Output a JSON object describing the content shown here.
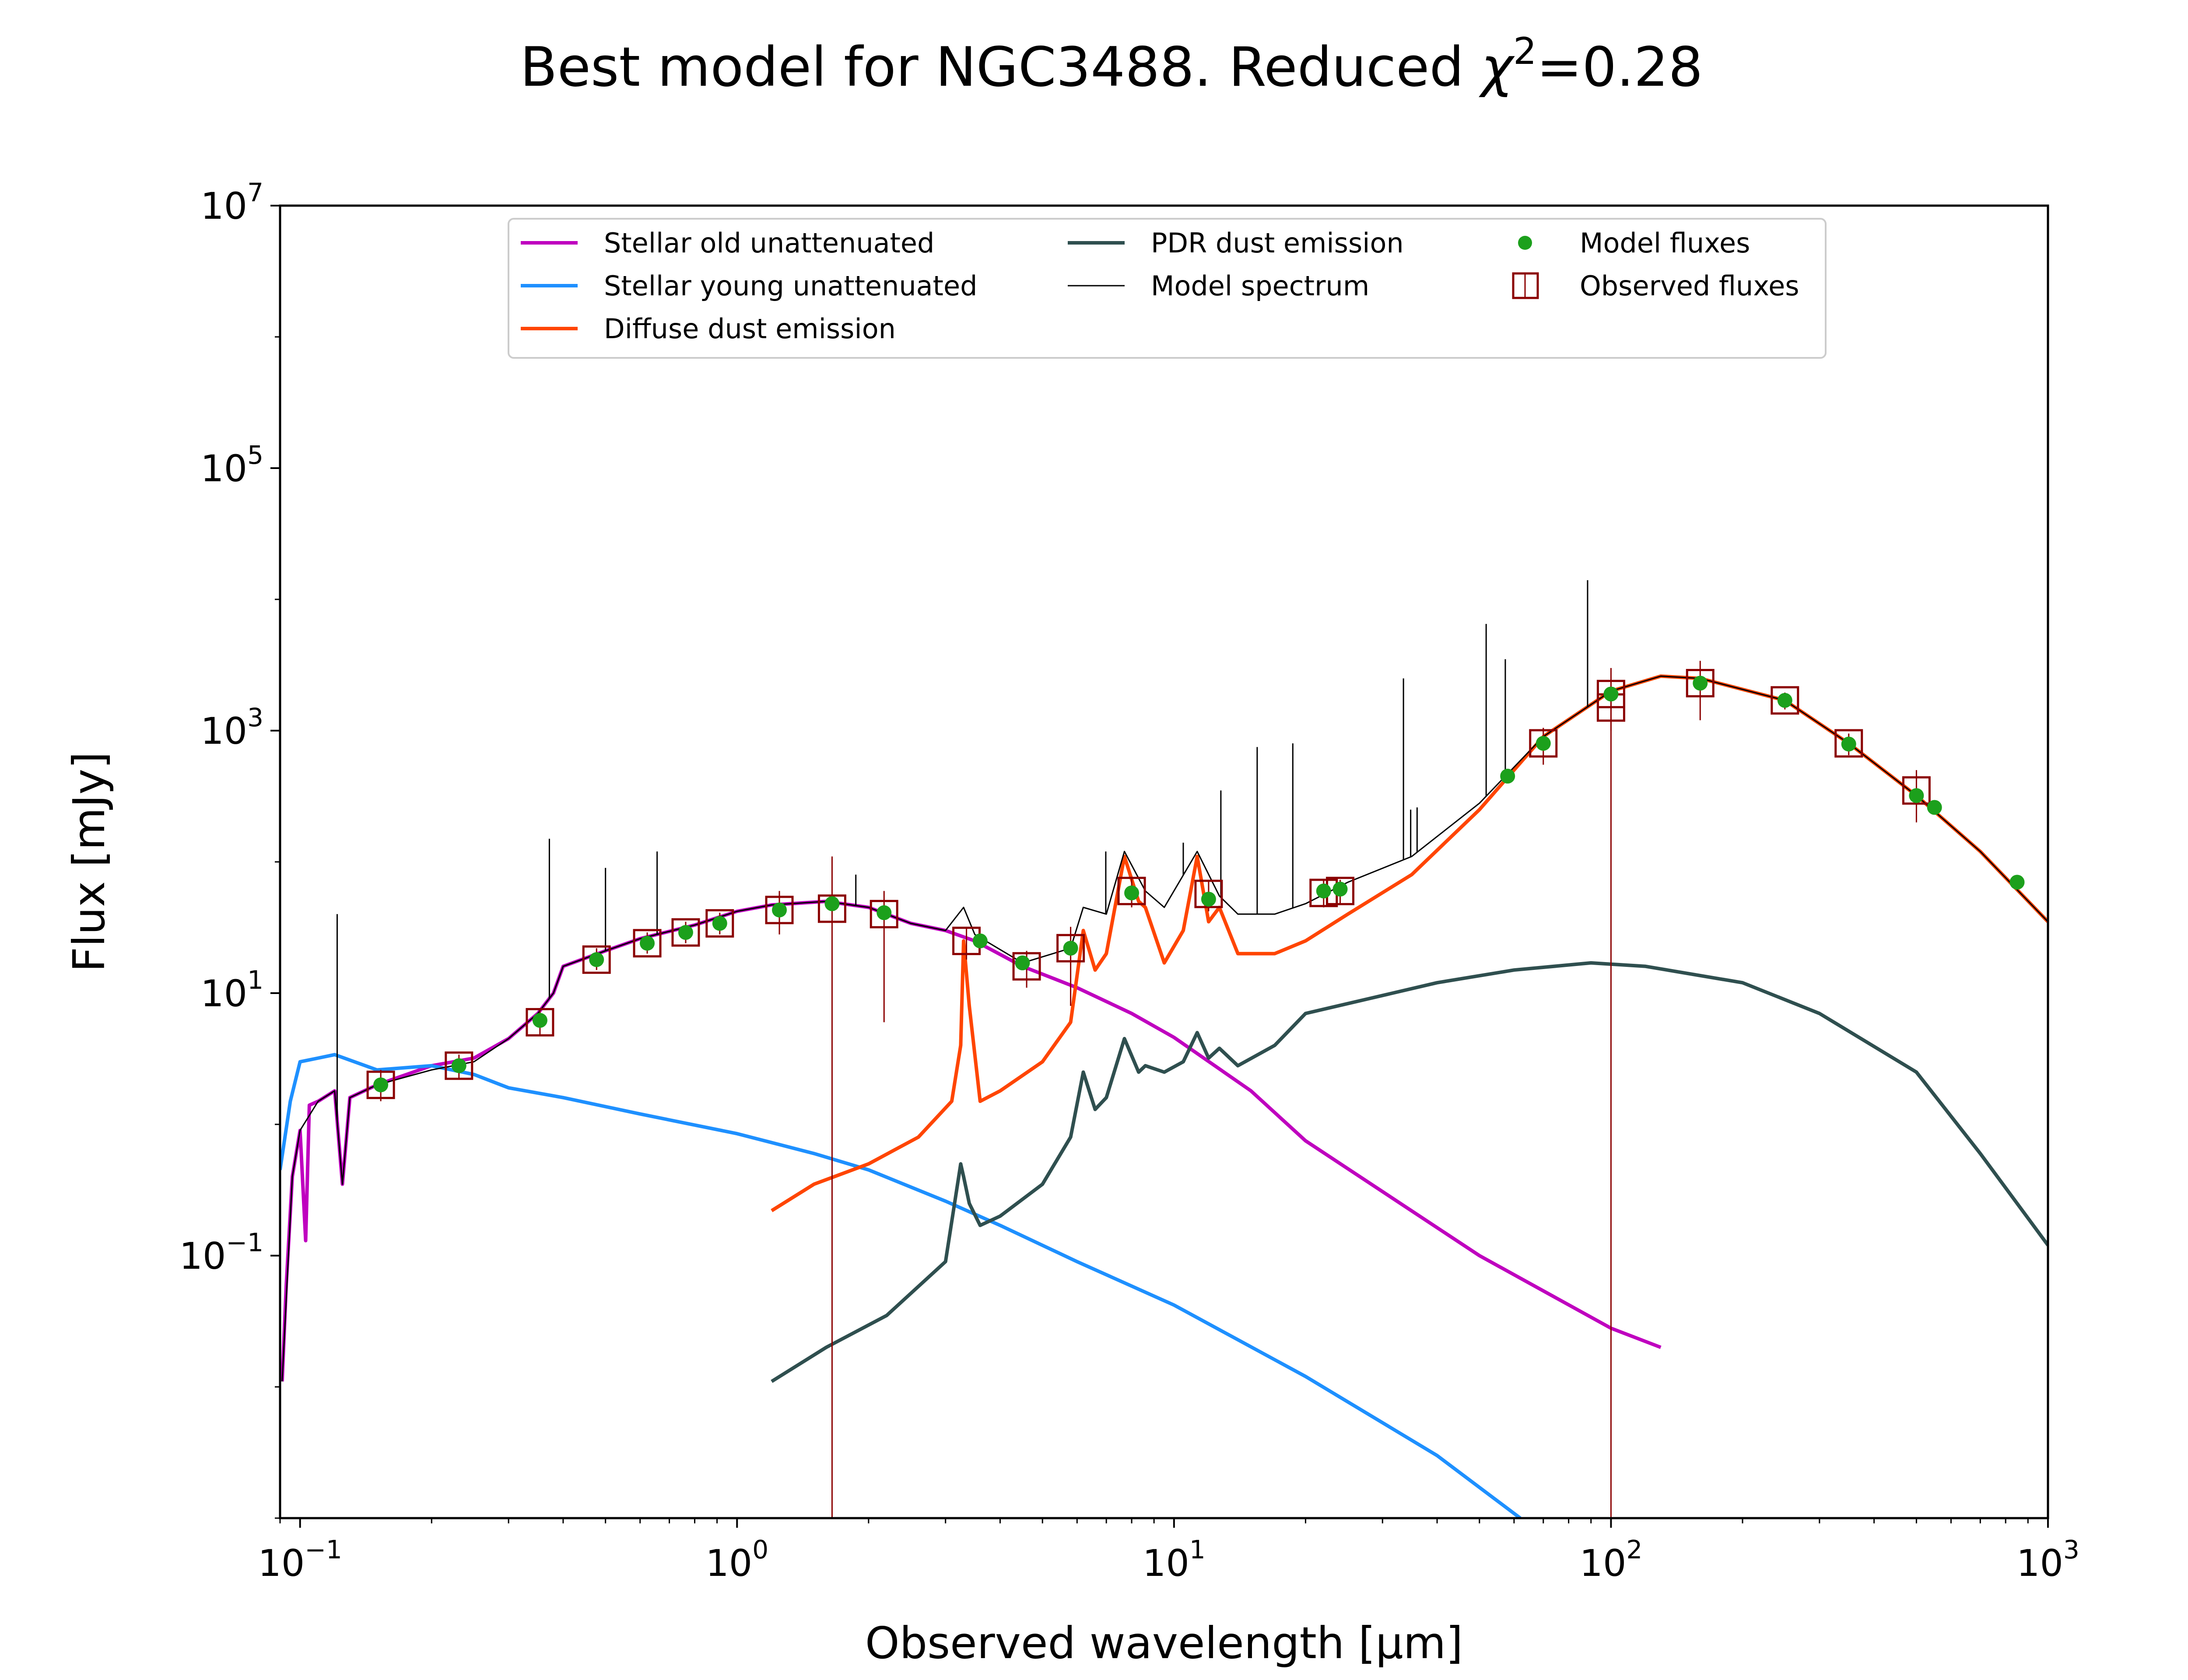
{
  "chart_data": {
    "type": "line",
    "title": "Best model for NGC3488. Reduced χ²=0.28",
    "title_parts": {
      "prefix": "Best model for NGC3488. Reduced ",
      "chi": "χ",
      "sup": "2",
      "suffix": "=0.28"
    },
    "xlabel": "Observed wavelength [μm]",
    "ylabel": "Flux [mJy]",
    "x_scale": "log",
    "y_scale": "log",
    "xlim": [
      0.09,
      1000
    ],
    "ylim": [
      0.001,
      10000000
    ],
    "x_ticks": [
      {
        "value": 0.1,
        "base": "10",
        "exp": "−1"
      },
      {
        "value": 1,
        "base": "10",
        "exp": "0"
      },
      {
        "value": 10,
        "base": "10",
        "exp": "1"
      },
      {
        "value": 100,
        "base": "10",
        "exp": "2"
      },
      {
        "value": 1000,
        "base": "10",
        "exp": "3"
      }
    ],
    "y_ticks": [
      {
        "value": 0.1,
        "base": "10",
        "exp": "−1"
      },
      {
        "value": 10,
        "base": "10",
        "exp": "1"
      },
      {
        "value": 1000,
        "base": "10",
        "exp": "3"
      },
      {
        "value": 100000,
        "base": "10",
        "exp": "5"
      },
      {
        "value": 10000000,
        "base": "10",
        "exp": "7"
      }
    ],
    "grid": false,
    "legend_position": "top-center",
    "legend": [
      {
        "label": "Stellar old unattenuated",
        "kind": "line",
        "color": "#bf00bf"
      },
      {
        "label": "Stellar young unattenuated",
        "kind": "line",
        "color": "#1e90ff"
      },
      {
        "label": "Diffuse dust emission",
        "kind": "line",
        "color": "#ff4500"
      },
      {
        "label": "PDR dust emission",
        "kind": "line",
        "color": "#2f4f4f"
      },
      {
        "label": "Model spectrum",
        "kind": "thin-line",
        "color": "#000000"
      },
      {
        "label": "Model fluxes",
        "kind": "dot",
        "color": "#1ca01c"
      },
      {
        "label": "Observed fluxes",
        "kind": "square",
        "color": "#8b0000"
      }
    ],
    "series": [
      {
        "name": "Stellar old unattenuated",
        "color": "#bf00bf",
        "points": [
          [
            0.091,
            0.011
          ],
          [
            0.093,
            0.06
          ],
          [
            0.096,
            0.4
          ],
          [
            0.1,
            0.9
          ],
          [
            0.103,
            0.13
          ],
          [
            0.105,
            1.4
          ],
          [
            0.11,
            1.5
          ],
          [
            0.12,
            1.8
          ],
          [
            0.125,
            0.35
          ],
          [
            0.13,
            1.6
          ],
          [
            0.15,
            2.0
          ],
          [
            0.2,
            2.8
          ],
          [
            0.25,
            3.2
          ],
          [
            0.3,
            4.5
          ],
          [
            0.35,
            7.0
          ],
          [
            0.38,
            10
          ],
          [
            0.4,
            16
          ],
          [
            0.5,
            21
          ],
          [
            0.6,
            26
          ],
          [
            0.8,
            33
          ],
          [
            1.0,
            42
          ],
          [
            1.2,
            47
          ],
          [
            1.6,
            50
          ],
          [
            2.0,
            45
          ],
          [
            2.5,
            34
          ],
          [
            3.0,
            30
          ],
          [
            3.5,
            25
          ],
          [
            4.5,
            16
          ],
          [
            6,
            11
          ],
          [
            8,
            7
          ],
          [
            10,
            4.6
          ],
          [
            15,
            1.8
          ],
          [
            20,
            0.75
          ],
          [
            50,
            0.1
          ],
          [
            100,
            0.028
          ],
          [
            130,
            0.02
          ]
        ]
      },
      {
        "name": "Stellar young unattenuated",
        "color": "#1e90ff",
        "points": [
          [
            0.09,
            0.45
          ],
          [
            0.095,
            1.5
          ],
          [
            0.1,
            3.0
          ],
          [
            0.11,
            3.2
          ],
          [
            0.12,
            3.4
          ],
          [
            0.15,
            2.6
          ],
          [
            0.2,
            2.8
          ],
          [
            0.25,
            2.4
          ],
          [
            0.3,
            1.9
          ],
          [
            0.4,
            1.6
          ],
          [
            0.6,
            1.2
          ],
          [
            1.0,
            0.85
          ],
          [
            1.5,
            0.6
          ],
          [
            2.0,
            0.45
          ],
          [
            3.0,
            0.26
          ],
          [
            4,
            0.17
          ],
          [
            6,
            0.09
          ],
          [
            10,
            0.042
          ],
          [
            20,
            0.012
          ],
          [
            40,
            0.003
          ],
          [
            62,
            0.001
          ]
        ]
      },
      {
        "name": "Diffuse dust emission",
        "color": "#ff4500",
        "points": [
          [
            1.2,
            0.22
          ],
          [
            1.5,
            0.35
          ],
          [
            2.0,
            0.5
          ],
          [
            2.6,
            0.8
          ],
          [
            3.1,
            1.5
          ],
          [
            3.25,
            4
          ],
          [
            3.3,
            25
          ],
          [
            3.4,
            8
          ],
          [
            3.6,
            1.5
          ],
          [
            4.0,
            1.8
          ],
          [
            5,
            3
          ],
          [
            5.8,
            6
          ],
          [
            6.2,
            30
          ],
          [
            6.6,
            15
          ],
          [
            7,
            20
          ],
          [
            7.7,
            110
          ],
          [
            8.3,
            50
          ],
          [
            8.6,
            45
          ],
          [
            9.5,
            17
          ],
          [
            10.5,
            30
          ],
          [
            11.3,
            110
          ],
          [
            12.0,
            35
          ],
          [
            12.7,
            45
          ],
          [
            14,
            20
          ],
          [
            17,
            20
          ],
          [
            20,
            25
          ],
          [
            25,
            40
          ],
          [
            35,
            80
          ],
          [
            50,
            250
          ],
          [
            70,
            900
          ],
          [
            100,
            2000
          ],
          [
            130,
            2600
          ],
          [
            160,
            2500
          ],
          [
            250,
            1700
          ],
          [
            350,
            800
          ],
          [
            500,
            320
          ],
          [
            700,
            120
          ],
          [
            1000,
            35
          ]
        ]
      },
      {
        "name": "PDR dust emission",
        "color": "#2f4f4f",
        "points": [
          [
            1.2,
            0.011
          ],
          [
            1.6,
            0.02
          ],
          [
            2.2,
            0.035
          ],
          [
            3.0,
            0.09
          ],
          [
            3.25,
            0.5
          ],
          [
            3.3,
            0.4
          ],
          [
            3.4,
            0.25
          ],
          [
            3.6,
            0.17
          ],
          [
            4.0,
            0.2
          ],
          [
            5,
            0.35
          ],
          [
            5.8,
            0.8
          ],
          [
            6.2,
            2.5
          ],
          [
            6.6,
            1.3
          ],
          [
            7,
            1.6
          ],
          [
            7.7,
            4.5
          ],
          [
            8.3,
            2.5
          ],
          [
            8.6,
            2.8
          ],
          [
            9.5,
            2.5
          ],
          [
            10.5,
            3
          ],
          [
            11.3,
            5
          ],
          [
            12,
            3.2
          ],
          [
            12.7,
            3.8
          ],
          [
            14,
            2.8
          ],
          [
            17,
            4
          ],
          [
            20,
            7
          ],
          [
            40,
            12
          ],
          [
            60,
            15
          ],
          [
            90,
            17
          ],
          [
            120,
            16
          ],
          [
            200,
            12
          ],
          [
            300,
            7
          ],
          [
            500,
            2.5
          ],
          [
            700,
            0.6
          ],
          [
            1000,
            0.12
          ]
        ]
      },
      {
        "name": "Model spectrum",
        "color": "#000000",
        "points": [
          [
            0.091,
            0.011
          ],
          [
            0.096,
            0.4
          ],
          [
            0.1,
            0.9
          ],
          [
            0.11,
            1.5
          ],
          [
            0.12,
            1.8
          ],
          [
            0.125,
            0.35
          ],
          [
            0.13,
            1.6
          ],
          [
            0.15,
            2.0
          ],
          [
            0.2,
            2.6
          ],
          [
            0.25,
            3.0
          ],
          [
            0.3,
            4.5
          ],
          [
            0.35,
            7.0
          ],
          [
            0.38,
            10
          ],
          [
            0.4,
            16
          ],
          [
            0.5,
            21
          ],
          [
            0.6,
            26
          ],
          [
            0.8,
            33
          ],
          [
            1.0,
            42
          ],
          [
            1.2,
            47
          ],
          [
            1.6,
            50
          ],
          [
            2.0,
            45
          ],
          [
            2.5,
            34
          ],
          [
            3.0,
            30
          ],
          [
            3.3,
            45
          ],
          [
            3.5,
            28
          ],
          [
            4.5,
            17
          ],
          [
            5.8,
            22
          ],
          [
            6.2,
            45
          ],
          [
            7,
            40
          ],
          [
            7.7,
            120
          ],
          [
            8.6,
            60
          ],
          [
            9.5,
            45
          ],
          [
            11.3,
            120
          ],
          [
            12.7,
            55
          ],
          [
            14,
            40
          ],
          [
            17,
            40
          ],
          [
            20,
            48
          ],
          [
            25,
            70
          ],
          [
            35,
            110
          ],
          [
            50,
            280
          ],
          [
            70,
            900
          ],
          [
            100,
            2000
          ],
          [
            130,
            2600
          ],
          [
            160,
            2500
          ],
          [
            250,
            1700
          ],
          [
            350,
            800
          ],
          [
            500,
            320
          ],
          [
            700,
            120
          ],
          [
            1000,
            35
          ]
        ]
      }
    ],
    "emission_lines": [
      {
        "x": 0.1216,
        "peak": 40
      },
      {
        "x": 0.372,
        "peak": 150
      },
      {
        "x": 0.5,
        "peak": 90
      },
      {
        "x": 0.6563,
        "peak": 120
      },
      {
        "x": 1.87,
        "peak": 80
      },
      {
        "x": 6.98,
        "peak": 120
      },
      {
        "x": 10.5,
        "peak": 140
      },
      {
        "x": 12.8,
        "peak": 350
      },
      {
        "x": 15.5,
        "peak": 750
      },
      {
        "x": 18.7,
        "peak": 800
      },
      {
        "x": 33.5,
        "peak": 2500
      },
      {
        "x": 34.8,
        "peak": 250
      },
      {
        "x": 36,
        "peak": 260
      },
      {
        "x": 51.8,
        "peak": 6500
      },
      {
        "x": 57.3,
        "peak": 3500
      },
      {
        "x": 88.4,
        "peak": 14000
      }
    ],
    "model_fluxes": [
      [
        0.153,
        2.0
      ],
      [
        0.231,
        2.8
      ],
      [
        0.354,
        6.2
      ],
      [
        0.477,
        18
      ],
      [
        0.623,
        24
      ],
      [
        0.763,
        29
      ],
      [
        0.913,
        34
      ],
      [
        1.25,
        43
      ],
      [
        1.65,
        48
      ],
      [
        2.17,
        41
      ],
      [
        3.6,
        25
      ],
      [
        4.5,
        17
      ],
      [
        5.8,
        22
      ],
      [
        8.0,
        58
      ],
      [
        12,
        52
      ],
      [
        22,
        60
      ],
      [
        24,
        62
      ],
      [
        58,
        450
      ],
      [
        70,
        800
      ],
      [
        100,
        1900
      ],
      [
        160,
        2300
      ],
      [
        250,
        1700
      ],
      [
        350,
        790
      ],
      [
        500,
        320
      ],
      [
        550,
        260
      ],
      [
        850,
        70
      ]
    ],
    "observed_fluxes": [
      {
        "x": 0.153,
        "y": 2.0,
        "err": [
          1.5,
          2.6
        ]
      },
      {
        "x": 0.231,
        "y": 2.8,
        "err": [
          2.2,
          3.4
        ]
      },
      {
        "x": 0.354,
        "y": 6.0,
        "err": [
          4.8,
          7.4
        ]
      },
      {
        "x": 0.477,
        "y": 18,
        "err": [
          15,
          22
        ]
      },
      {
        "x": 0.623,
        "y": 24,
        "err": [
          20,
          29
        ]
      },
      {
        "x": 0.763,
        "y": 29,
        "err": [
          24,
          35
        ]
      },
      {
        "x": 0.913,
        "y": 34,
        "err": [
          28,
          41
        ]
      },
      {
        "x": 1.25,
        "y": 43,
        "err": [
          28,
          60
        ]
      },
      {
        "x": 1.65,
        "y": 44,
        "err": [
          0.001,
          110
        ]
      },
      {
        "x": 2.17,
        "y": 40,
        "err": [
          6,
          60
        ]
      },
      {
        "x": 3.35,
        "y": 25,
        "err": [
          18,
          32
        ]
      },
      {
        "x": 4.6,
        "y": 16,
        "err": [
          11,
          21
        ]
      },
      {
        "x": 5.8,
        "y": 22,
        "err": [
          8,
          32
        ]
      },
      {
        "x": 8.0,
        "y": 60,
        "err": [
          45,
          75
        ]
      },
      {
        "x": 12,
        "y": 57,
        "err": [
          42,
          72
        ]
      },
      {
        "x": 22,
        "y": 58,
        "err": [
          45,
          72
        ]
      },
      {
        "x": 24,
        "y": 60,
        "err": [
          48,
          73
        ]
      },
      {
        "x": 70,
        "y": 800,
        "err": [
          550,
          1050
        ]
      },
      {
        "x": 100,
        "y": 1900,
        "err": [
          0.001,
          3000
        ]
      },
      {
        "x": 100,
        "y": 1500,
        "err": [
          1000,
          2200
        ]
      },
      {
        "x": 160,
        "y": 2300,
        "err": [
          1200,
          3400
        ]
      },
      {
        "x": 250,
        "y": 1700,
        "err": [
          1450,
          1950
        ]
      },
      {
        "x": 350,
        "y": 800,
        "err": [
          650,
          950
        ]
      },
      {
        "x": 500,
        "y": 350,
        "err": [
          200,
          500
        ]
      }
    ]
  }
}
